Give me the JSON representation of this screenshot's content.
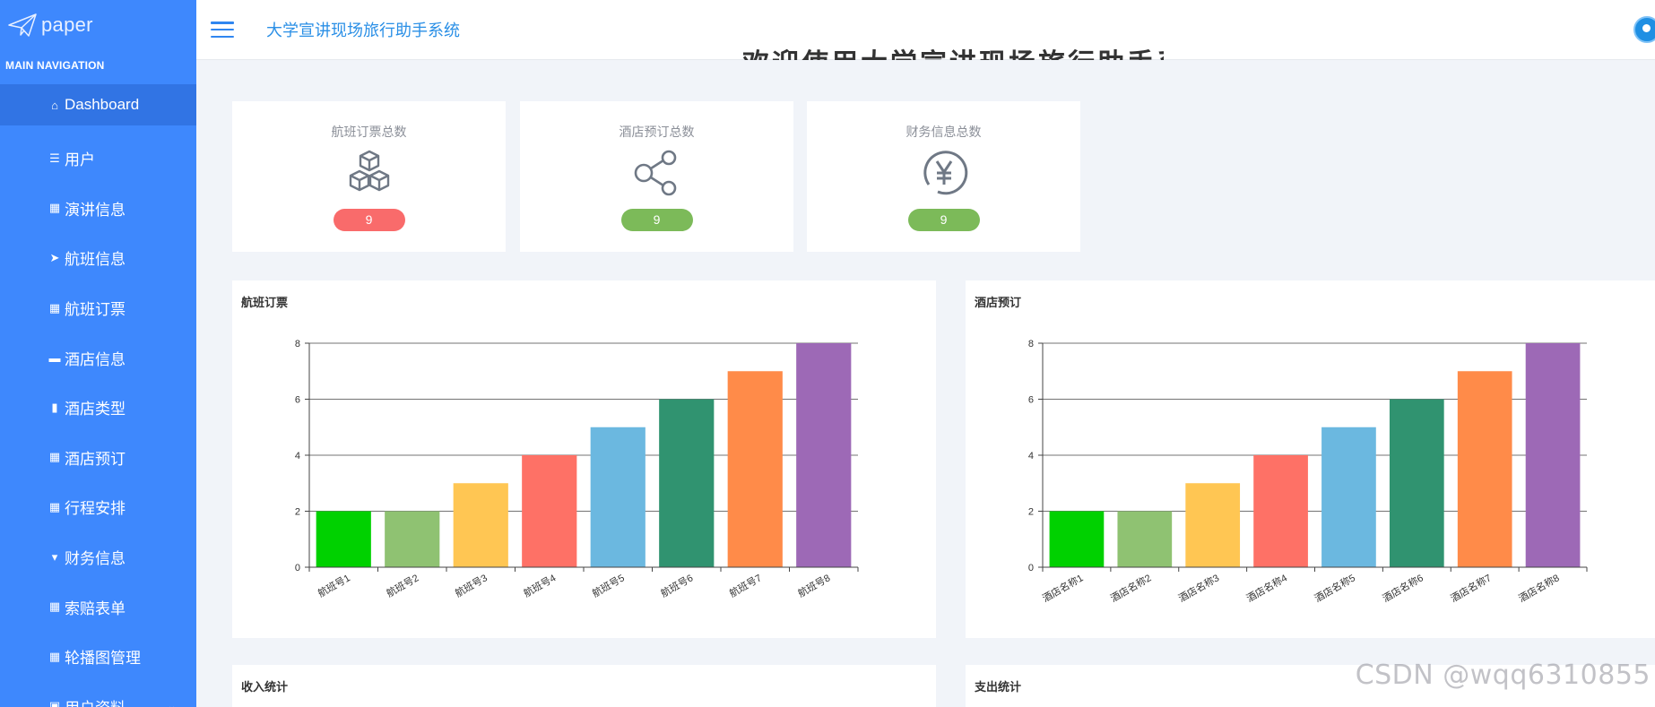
{
  "app": {
    "logo_text": "paper",
    "title": "大学宣讲现场旅行助手系统",
    "banner_text": "欢迎使用大学宣讲现场旅行助手系统"
  },
  "sidebar": {
    "header": "MAIN NAVIGATION",
    "items": [
      {
        "label": "Dashboard",
        "icon": "home-icon",
        "glyph": "⌂",
        "active": true
      },
      {
        "label": "用户",
        "icon": "list-icon",
        "glyph": "☰"
      },
      {
        "label": "演讲信息",
        "icon": "grid-icon",
        "glyph": "▦"
      },
      {
        "label": "航班信息",
        "icon": "paper-plane-icon",
        "glyph": "➤"
      },
      {
        "label": "航班订票",
        "icon": "grid-icon",
        "glyph": "▦"
      },
      {
        "label": "酒店信息",
        "icon": "chat-icon",
        "glyph": "▬"
      },
      {
        "label": "酒店类型",
        "icon": "bar-chart-icon",
        "glyph": "▮"
      },
      {
        "label": "酒店预订",
        "icon": "grid-icon",
        "glyph": "▦"
      },
      {
        "label": "行程安排",
        "icon": "grid-icon",
        "glyph": "▦"
      },
      {
        "label": "财务信息",
        "icon": "trophy-icon",
        "glyph": "▾"
      },
      {
        "label": "索赔表单",
        "icon": "grid-icon",
        "glyph": "▦"
      },
      {
        "label": "轮播图管理",
        "icon": "grid-icon",
        "glyph": "▦"
      },
      {
        "label": "用户资料",
        "icon": "folder-icon",
        "glyph": "▣",
        "expandable": true
      }
    ]
  },
  "stats": [
    {
      "title": "航班订票总数",
      "value": "9",
      "icon": "cubes-icon",
      "badge_color": "#f96b6b"
    },
    {
      "title": "酒店预订总数",
      "value": "9",
      "icon": "share-icon",
      "badge_color": "#7cba59"
    },
    {
      "title": "财务信息总数",
      "value": "9",
      "icon": "yen-icon",
      "badge_color": "#7cba59"
    }
  ],
  "panels": {
    "flight": {
      "title": "航班订票"
    },
    "hotel": {
      "title": "酒店预订"
    },
    "income": {
      "title": "收入统计"
    },
    "expense": {
      "title": "支出统计"
    }
  },
  "watermark": "CSDN @wqq6310855",
  "colors": {
    "sidebar": "#3e88fd",
    "sidebar_active": "#3174e4",
    "title": "#2a8fe6",
    "bars": [
      "#00d100",
      "#8fc272",
      "#ffc653",
      "#fe7166",
      "#6bb8e0",
      "#309370",
      "#ff8b49",
      "#9d69b6"
    ]
  },
  "chart_data": [
    {
      "type": "bar",
      "title": "航班订票",
      "categories": [
        "航班号1",
        "航班号2",
        "航班号3",
        "航班号4",
        "航班号5",
        "航班号6",
        "航班号7",
        "航班号8"
      ],
      "values": [
        2,
        2,
        3,
        4,
        5,
        6,
        7,
        8
      ],
      "ylim": [
        0,
        8
      ],
      "yticks": [
        0,
        2,
        4,
        6,
        8
      ],
      "grid": true
    },
    {
      "type": "bar",
      "title": "酒店预订",
      "categories": [
        "酒店名称1",
        "酒店名称2",
        "酒店名称3",
        "酒店名称4",
        "酒店名称5",
        "酒店名称6",
        "酒店名称7",
        "酒店名称8"
      ],
      "values": [
        2,
        2,
        3,
        4,
        5,
        6,
        7,
        8
      ],
      "ylim": [
        0,
        8
      ],
      "yticks": [
        0,
        2,
        4,
        6,
        8
      ],
      "grid": true
    }
  ]
}
